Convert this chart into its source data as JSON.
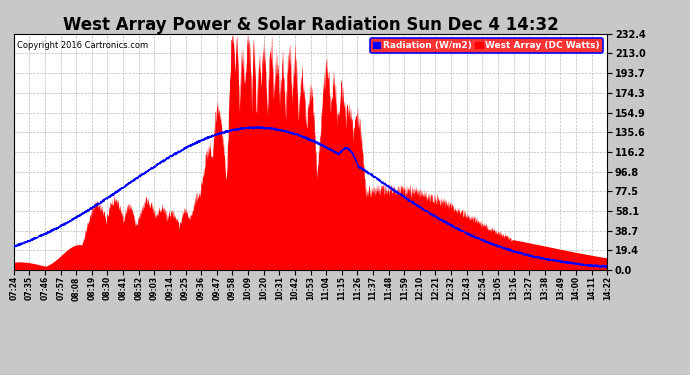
{
  "title": "West Array Power & Solar Radiation Sun Dec 4 14:32",
  "copyright": "Copyright 2016 Cartronics.com",
  "legend_labels": [
    "Radiation (W/m2)",
    "West Array (DC Watts)"
  ],
  "ytick_values": [
    0.0,
    19.4,
    38.7,
    58.1,
    77.5,
    96.8,
    116.2,
    135.6,
    154.9,
    174.3,
    193.7,
    213.0,
    232.4
  ],
  "ylim": [
    0.0,
    232.4
  ],
  "background_color": "#c8c8c8",
  "plot_bg_color": "#ffffff",
  "grid_color": "#aaaaaa",
  "title_fontsize": 12,
  "x_tick_labels": [
    "07:24",
    "07:35",
    "07:46",
    "07:57",
    "08:08",
    "08:19",
    "08:30",
    "08:41",
    "08:52",
    "09:03",
    "09:14",
    "09:25",
    "09:36",
    "09:47",
    "09:58",
    "10:09",
    "10:20",
    "10:31",
    "10:42",
    "10:53",
    "11:04",
    "11:15",
    "11:26",
    "11:37",
    "11:48",
    "11:59",
    "12:10",
    "12:21",
    "12:32",
    "12:43",
    "12:54",
    "13:05",
    "13:16",
    "13:27",
    "13:38",
    "13:49",
    "14:00",
    "14:11",
    "14:22"
  ]
}
